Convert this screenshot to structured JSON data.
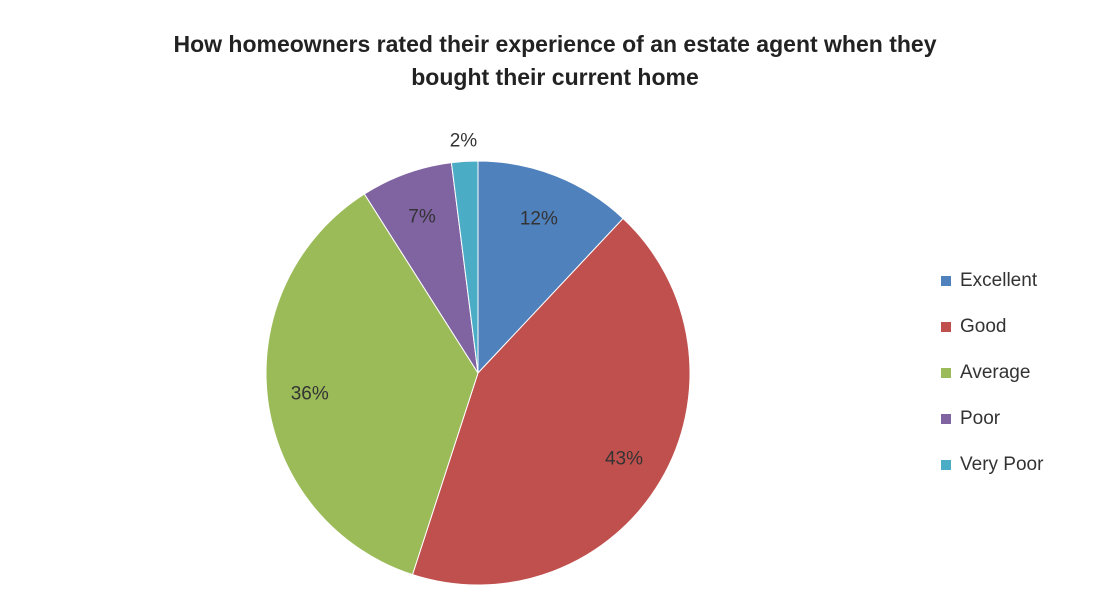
{
  "chart_data": {
    "type": "pie",
    "title": "How homeowners rated their experience of an estate agent when they bought their current home",
    "categories": [
      "Excellent",
      "Good",
      "Average",
      "Poor",
      "Very Poor"
    ],
    "values": [
      12,
      43,
      36,
      7,
      2
    ],
    "value_labels": [
      "12%",
      "43%",
      "36%",
      "7%",
      "2%"
    ],
    "colors": [
      "#4f81bd",
      "#c0504d",
      "#9bbb59",
      "#8064a2",
      "#4bacc6"
    ],
    "legend": "right"
  }
}
